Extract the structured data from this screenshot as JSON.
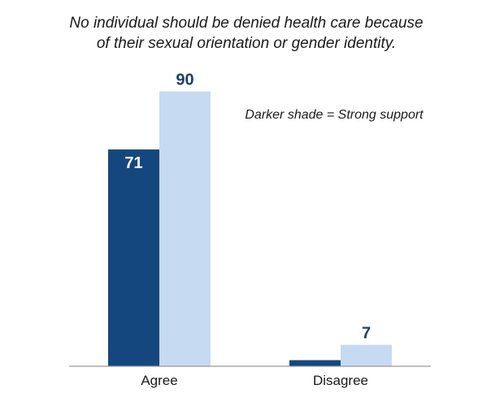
{
  "chart_data": {
    "type": "bar",
    "title": [
      "No individual should be denied health care because",
      "of their sexual orientation or gender identity."
    ],
    "annotation": "Darker shade = Strong support",
    "categories": [
      "Agree",
      "Disagree"
    ],
    "series": [
      {
        "values": [
          71,
          2
        ],
        "labels": [
          "71",
          ""
        ],
        "color": "#15477f"
      },
      {
        "values": [
          90,
          7
        ],
        "labels": [
          "90",
          "7"
        ],
        "color": "#c6daf2"
      }
    ],
    "ylim": [
      0,
      100
    ],
    "grid": false,
    "colors": {
      "dark": "#15477f",
      "light": "#c6daf2",
      "axis": "#999999",
      "label_dark": "#1a3f73",
      "label_on_dark": "#ffffff"
    }
  }
}
